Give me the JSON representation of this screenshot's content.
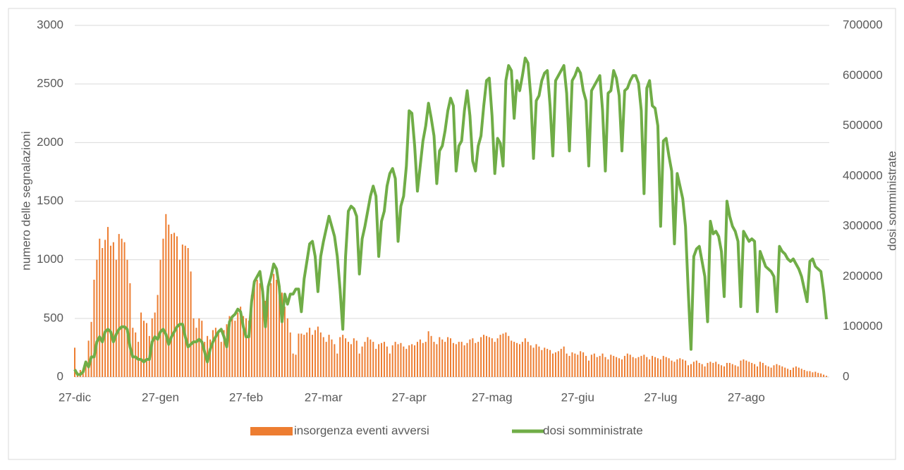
{
  "chart_data": {
    "type": "bar",
    "ylabel": "numero delle segnalazioni",
    "y2label": "dosi somministrate",
    "ylim": [
      0,
      3000
    ],
    "yticks": [
      0,
      500,
      1000,
      1500,
      2000,
      2500,
      3000
    ],
    "y2lim": [
      0,
      700000
    ],
    "y2ticks": [
      0,
      100000,
      200000,
      300000,
      400000,
      500000,
      600000,
      700000
    ],
    "grid": true,
    "legend": "bottom",
    "categories": [
      "27-dic",
      null,
      null,
      null,
      null,
      null,
      null,
      null,
      null,
      null,
      null,
      null,
      null,
      null,
      null,
      null,
      null,
      null,
      null,
      null,
      null,
      null,
      null,
      null,
      null,
      null,
      null,
      null,
      null,
      null,
      null,
      "27-gen",
      null,
      null,
      null,
      null,
      null,
      null,
      null,
      null,
      null,
      null,
      null,
      null,
      null,
      null,
      null,
      null,
      null,
      null,
      null,
      null,
      null,
      null,
      null,
      null,
      null,
      null,
      null,
      null,
      null,
      null,
      "27-feb",
      null,
      null,
      null,
      null,
      null,
      null,
      null,
      null,
      null,
      null,
      null,
      null,
      null,
      null,
      null,
      null,
      null,
      null,
      null,
      null,
      null,
      null,
      null,
      null,
      null,
      null,
      null,
      "27-mar",
      null,
      null,
      null,
      null,
      null,
      null,
      null,
      null,
      null,
      null,
      null,
      null,
      null,
      null,
      null,
      null,
      null,
      null,
      null,
      null,
      null,
      null,
      null,
      null,
      null,
      null,
      null,
      null,
      null,
      null,
      "27-apr",
      null,
      null,
      null,
      null,
      null,
      null,
      null,
      null,
      null,
      null,
      null,
      null,
      null,
      null,
      null,
      null,
      null,
      null,
      null,
      null,
      null,
      null,
      null,
      null,
      null,
      null,
      null,
      null,
      null,
      "27-mag",
      null,
      null,
      null,
      null,
      null,
      null,
      null,
      null,
      null,
      null,
      null,
      null,
      null,
      null,
      null,
      null,
      null,
      null,
      null,
      null,
      null,
      null,
      null,
      null,
      null,
      null,
      null,
      null,
      null,
      null,
      "27-giu",
      null,
      null,
      null,
      null,
      null,
      null,
      null,
      null,
      null,
      null,
      null,
      null,
      null,
      null,
      null,
      null,
      null,
      null,
      null,
      null,
      null,
      null,
      null,
      null,
      null,
      null,
      null,
      null,
      null,
      "27-lug",
      null,
      null,
      null,
      null,
      null,
      null,
      null,
      null,
      null,
      null,
      null,
      null,
      null,
      null,
      null,
      null,
      null,
      null,
      null,
      null,
      null,
      null,
      null,
      null,
      null,
      null,
      null,
      null,
      null,
      null,
      "27-ago",
      null,
      null,
      null,
      null,
      null,
      null,
      null,
      null,
      null,
      null,
      null,
      null,
      null,
      null,
      null,
      null,
      null,
      null,
      null,
      null,
      null,
      null,
      null,
      null,
      null,
      null,
      null,
      null,
      null
    ],
    "series": [
      {
        "name": "insorgenza eventi avversi",
        "type": "bar",
        "color": "#ed7d31",
        "values": [
          250,
          40,
          60,
          30,
          100,
          310,
          470,
          830,
          1000,
          1180,
          1100,
          1170,
          1280,
          1120,
          1150,
          1000,
          1220,
          1180,
          1150,
          1000,
          800,
          420,
          380,
          300,
          550,
          480,
          460,
          350,
          500,
          550,
          700,
          1000,
          1180,
          1390,
          1300,
          1220,
          1230,
          1200,
          1000,
          1130,
          1120,
          1100,
          900,
          500,
          420,
          500,
          480,
          300,
          350,
          320,
          400,
          420,
          380,
          300,
          400,
          450,
          520,
          500,
          480,
          550,
          600,
          520,
          500,
          480,
          700,
          780,
          830,
          800,
          700,
          650,
          720,
          800,
          880,
          830,
          760,
          720,
          600,
          500,
          380,
          200,
          190,
          370,
          370,
          360,
          380,
          420,
          360,
          400,
          430,
          380,
          340,
          300,
          360,
          320,
          280,
          200,
          340,
          360,
          330,
          300,
          280,
          330,
          310,
          200,
          260,
          300,
          340,
          320,
          300,
          240,
          280,
          290,
          300,
          260,
          200,
          270,
          300,
          280,
          290,
          260,
          240,
          270,
          280,
          270,
          300,
          320,
          290,
          300,
          390,
          350,
          300,
          280,
          340,
          320,
          300,
          340,
          330,
          290,
          280,
          300,
          300,
          270,
          290,
          320,
          330,
          290,
          300,
          340,
          360,
          350,
          340,
          330,
          300,
          330,
          360,
          370,
          380,
          350,
          310,
          300,
          290,
          280,
          300,
          330,
          300,
          270,
          250,
          280,
          260,
          230,
          250,
          240,
          230,
          200,
          210,
          220,
          240,
          260,
          200,
          180,
          210,
          200,
          190,
          220,
          210,
          180,
          140,
          190,
          200,
          170,
          180,
          200,
          170,
          150,
          190,
          180,
          170,
          160,
          150,
          180,
          200,
          190,
          170,
          160,
          170,
          180,
          190,
          170,
          150,
          180,
          170,
          160,
          150,
          180,
          170,
          160,
          140,
          130,
          150,
          160,
          150,
          140,
          100,
          110,
          130,
          140,
          120,
          110,
          90,
          120,
          130,
          120,
          130,
          110,
          100,
          90,
          120,
          120,
          110,
          100,
          90,
          140,
          150,
          140,
          130,
          120,
          110,
          90,
          130,
          120,
          100,
          90,
          80,
          100,
          110,
          100,
          90,
          80,
          70,
          60,
          80,
          90,
          80,
          70,
          60,
          50,
          50,
          40,
          45,
          35,
          30,
          20,
          10
        ]
      },
      {
        "name": "dosi somministrate",
        "type": "line",
        "axis": "y2",
        "color": "#70ad47",
        "values": [
          15000,
          5000,
          5000,
          10000,
          30000,
          20000,
          40000,
          40000,
          70000,
          80000,
          70000,
          90000,
          95000,
          90000,
          70000,
          85000,
          95000,
          100000,
          100000,
          95000,
          60000,
          40000,
          40000,
          35000,
          35000,
          30000,
          35000,
          35000,
          70000,
          80000,
          75000,
          90000,
          95000,
          85000,
          65000,
          80000,
          90000,
          100000,
          105000,
          105000,
          80000,
          60000,
          65000,
          70000,
          70000,
          75000,
          70000,
          50000,
          30000,
          55000,
          70000,
          80000,
          90000,
          95000,
          80000,
          60000,
          110000,
          120000,
          125000,
          135000,
          130000,
          100000,
          80000,
          80000,
          150000,
          190000,
          200000,
          210000,
          170000,
          100000,
          180000,
          200000,
          225000,
          215000,
          180000,
          110000,
          165000,
          145000,
          165000,
          165000,
          175000,
          175000,
          130000,
          195000,
          230000,
          265000,
          270000,
          240000,
          170000,
          240000,
          270000,
          295000,
          320000,
          300000,
          280000,
          240000,
          175000,
          95000,
          240000,
          330000,
          340000,
          335000,
          320000,
          205000,
          275000,
          300000,
          330000,
          360000,
          380000,
          360000,
          240000,
          310000,
          330000,
          380000,
          405000,
          415000,
          395000,
          270000,
          340000,
          360000,
          420000,
          530000,
          525000,
          460000,
          370000,
          420000,
          470000,
          500000,
          545000,
          515000,
          480000,
          385000,
          450000,
          460000,
          490000,
          530000,
          555000,
          540000,
          410000,
          460000,
          470000,
          530000,
          570000,
          520000,
          430000,
          410000,
          460000,
          480000,
          540000,
          590000,
          595000,
          520000,
          405000,
          475000,
          465000,
          420000,
          590000,
          620000,
          610000,
          515000,
          590000,
          570000,
          600000,
          635000,
          625000,
          560000,
          435000,
          550000,
          560000,
          590000,
          605000,
          610000,
          540000,
          440000,
          590000,
          600000,
          610000,
          620000,
          565000,
          450000,
          590000,
          600000,
          615000,
          605000,
          570000,
          550000,
          420000,
          570000,
          580000,
          590000,
          600000,
          530000,
          410000,
          565000,
          570000,
          610000,
          595000,
          560000,
          450000,
          570000,
          575000,
          590000,
          600000,
          600000,
          585000,
          530000,
          365000,
          575000,
          590000,
          540000,
          535000,
          500000,
          300000,
          470000,
          475000,
          440000,
          410000,
          265000,
          405000,
          380000,
          355000,
          300000,
          170000,
          55000,
          240000,
          255000,
          260000,
          230000,
          200000,
          110000,
          310000,
          285000,
          290000,
          280000,
          250000,
          160000,
          350000,
          320000,
          300000,
          290000,
          270000,
          140000,
          290000,
          280000,
          270000,
          275000,
          270000,
          130000,
          250000,
          235000,
          220000,
          215000,
          210000,
          200000,
          130000,
          260000,
          250000,
          245000,
          235000,
          230000,
          235000,
          225000,
          215000,
          200000,
          175000,
          150000,
          230000,
          235000,
          220000,
          215000,
          210000,
          170000,
          115000
        ]
      }
    ]
  }
}
